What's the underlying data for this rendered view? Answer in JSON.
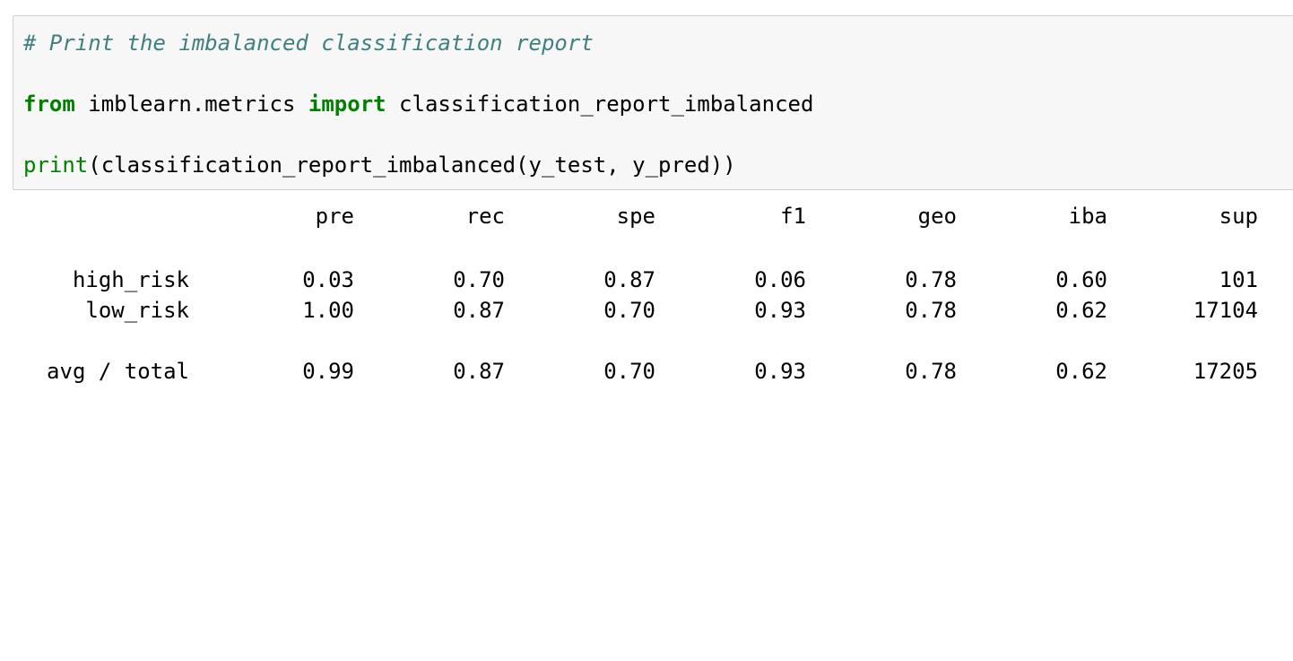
{
  "code_cell": {
    "comment": "# Print the imbalanced classification report",
    "line2": {
      "kw_from": "from",
      "module": " imblearn.metrics ",
      "kw_import": "import",
      "name": " classification_report_imbalanced"
    },
    "line3": {
      "builtin": "print",
      "rest": "(classification_report_imbalanced(y_test, y_pred))"
    }
  },
  "report": {
    "headers": [
      "pre",
      "rec",
      "spe",
      "f1",
      "geo",
      "iba",
      "sup"
    ],
    "rows": [
      {
        "label": "high_risk",
        "values": [
          "0.03",
          "0.70",
          "0.87",
          "0.06",
          "0.78",
          "0.60",
          "101"
        ]
      },
      {
        "label": "low_risk",
        "values": [
          "1.00",
          "0.87",
          "0.70",
          "0.93",
          "0.78",
          "0.62",
          "17104"
        ]
      }
    ],
    "total": {
      "label": "avg / total",
      "values": [
        "0.99",
        "0.87",
        "0.70",
        "0.93",
        "0.78",
        "0.62",
        "17205"
      ]
    }
  }
}
